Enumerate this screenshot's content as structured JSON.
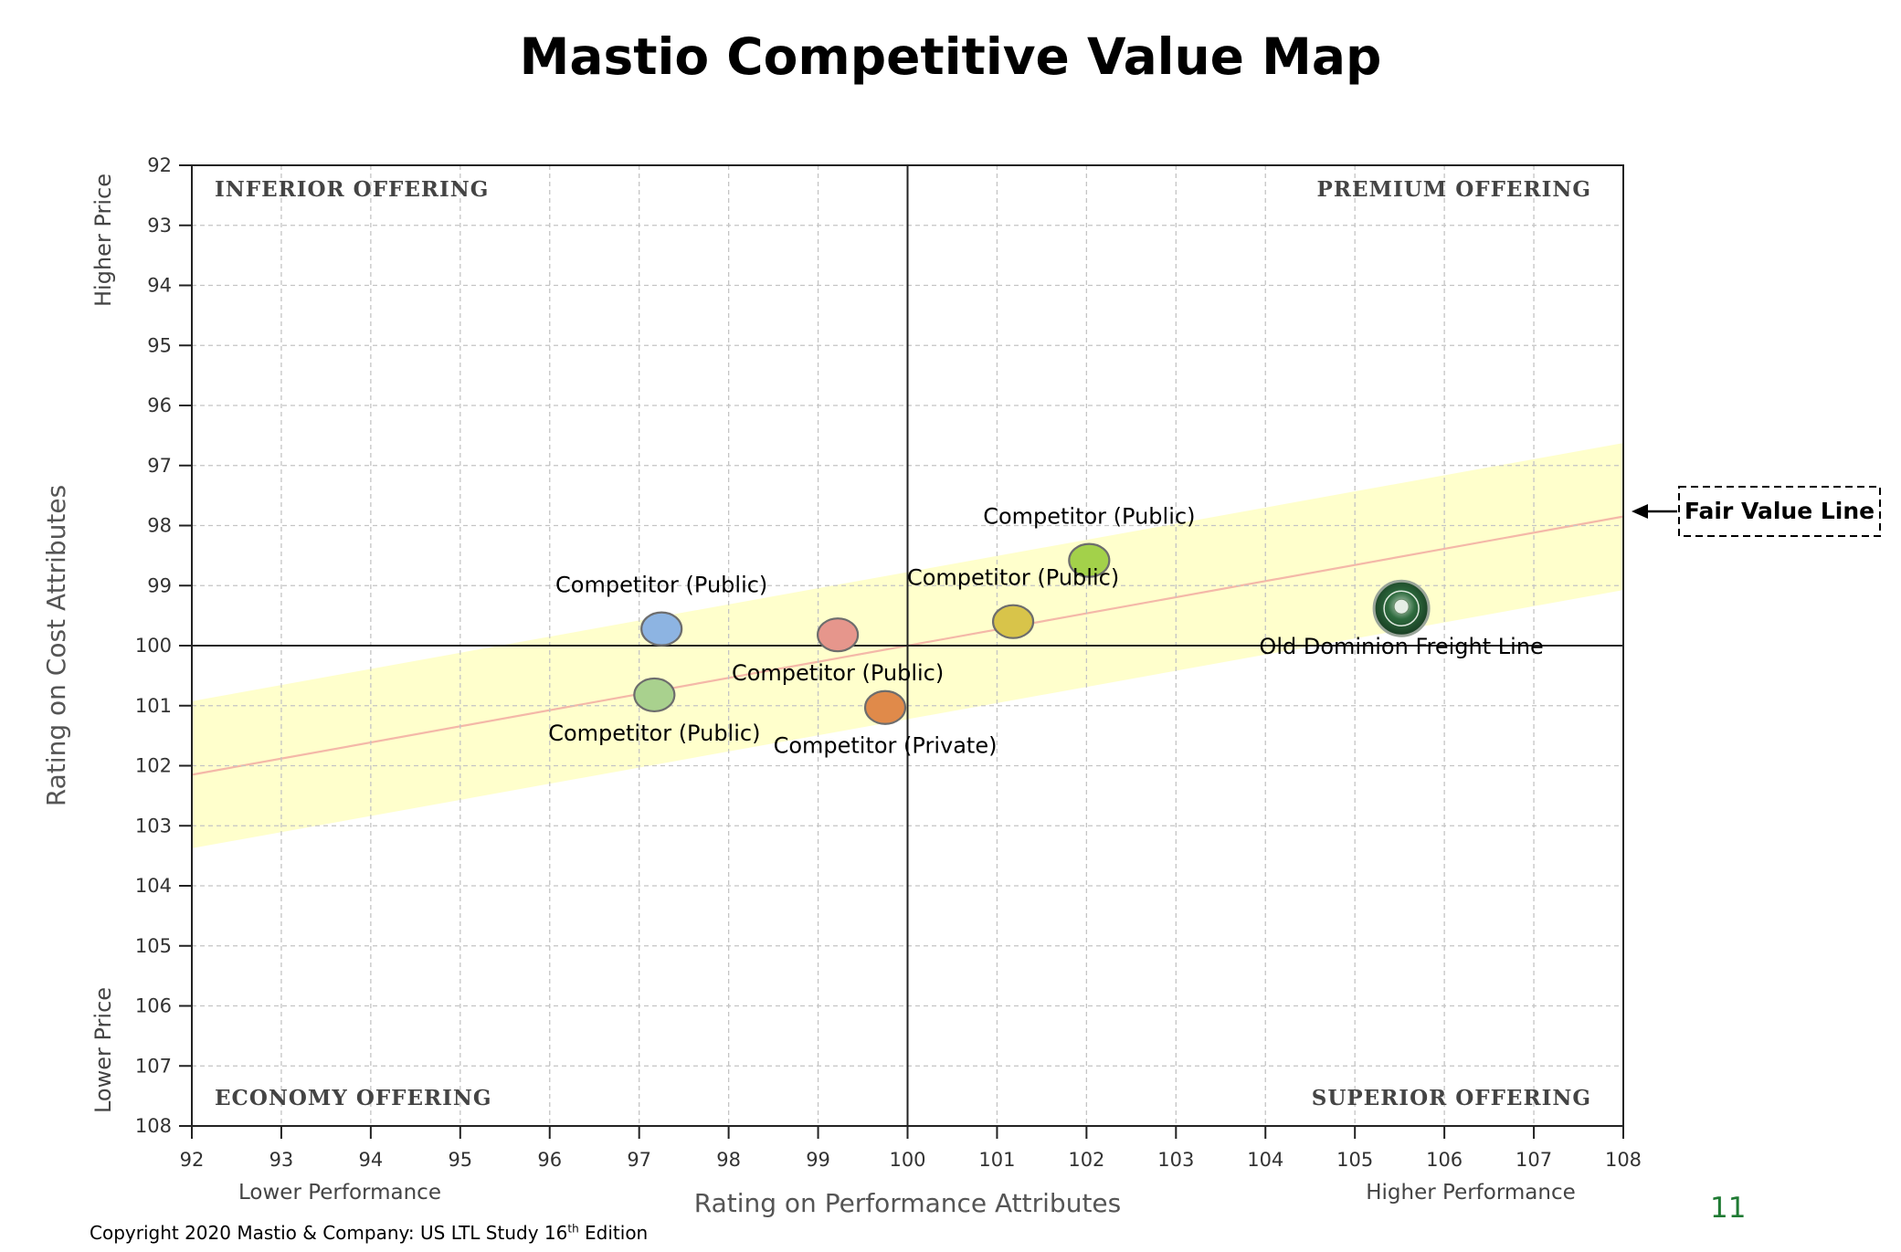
{
  "title": "Mastio Competitive Value Map",
  "footer": {
    "copyright_prefix": "Copyright 2020 Mastio & Company: US LTL Study 16",
    "copyright_sup": "th",
    "copyright_suffix": " Edition",
    "slide_number": "11"
  },
  "chart_data": {
    "type": "scatter",
    "title": "Mastio Competitive Value Map",
    "xlabel": "Rating on Performance Attributes",
    "ylabel": "Rating on Cost Attributes",
    "xlim": [
      92,
      108
    ],
    "ylim": [
      92,
      108
    ],
    "y_inverted": true,
    "grid": true,
    "x_ticks": [
      "92",
      "93",
      "94",
      "95",
      "96",
      "97",
      "98",
      "99",
      "100",
      "101",
      "102",
      "103",
      "104",
      "105",
      "106",
      "107",
      "108"
    ],
    "y_ticks": [
      "92",
      "93",
      "94",
      "95",
      "96",
      "97",
      "98",
      "99",
      "100",
      "101",
      "102",
      "103",
      "104",
      "105",
      "106",
      "107",
      "108"
    ],
    "x_low_label": "Lower Performance",
    "x_high_label": "Higher Performance",
    "y_top_label": "Higher Price",
    "y_bottom_label": "Lower Price",
    "quadrants": {
      "top_left": "INFERIOR OFFERING",
      "top_right": "PREMIUM OFFERING",
      "bottom_left": "ECONOMY OFFERING",
      "bottom_right": "SUPERIOR OFFERING"
    },
    "fair_value_line": {
      "label": "Fair Value Line",
      "start": [
        92,
        102.15
      ],
      "end": [
        108,
        97.85
      ],
      "band_width": 2.45,
      "line_color": "#f4b8a8",
      "band_color": "#ffffcc"
    },
    "points": [
      {
        "label": "Competitor (Public)",
        "x": 97.25,
        "y": 99.72,
        "color": "#8db4e2",
        "label_pos": "above"
      },
      {
        "label": "Competitor (Public)",
        "x": 97.17,
        "y": 100.82,
        "color": "#a9d18e",
        "label_pos": "below"
      },
      {
        "label": "Competitor (Public)",
        "x": 99.22,
        "y": 99.82,
        "color": "#e6968c",
        "label_pos": "below"
      },
      {
        "label": "Competitor (Private)",
        "x": 99.75,
        "y": 101.03,
        "color": "#e08a4a",
        "label_pos": "below"
      },
      {
        "label": "Competitor (Public)",
        "x": 101.18,
        "y": 99.6,
        "color": "#d8c44a",
        "label_pos": "above"
      },
      {
        "label": "Competitor (Public)",
        "x": 102.03,
        "y": 98.58,
        "color": "#a3d14a",
        "label_pos": "above"
      },
      {
        "label": "Old Dominion Freight Line",
        "x": 105.52,
        "y": 99.38,
        "color": "#2e6b3e",
        "label_pos": "below",
        "logo": true
      }
    ]
  }
}
